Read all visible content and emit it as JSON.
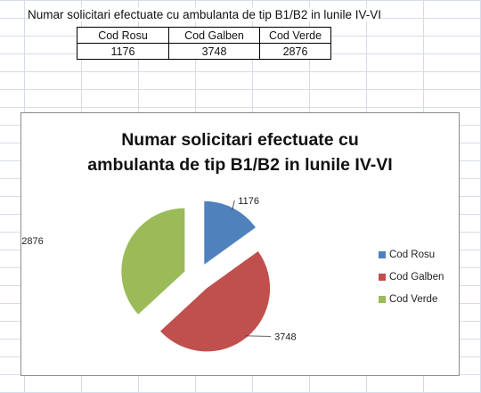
{
  "sheet": {
    "title": "Numar solicitari efectuate cu ambulanta de tip B1/B2 in lunile IV-VI",
    "table": {
      "headers": [
        "Cod Rosu",
        "Cod Galben",
        "Cod Verde"
      ],
      "values": [
        "1176",
        "3748",
        "2876"
      ]
    }
  },
  "chart_data": {
    "type": "pie",
    "title_lines": [
      "Numar solicitari efectuate cu",
      "ambulanta de tip B1/B2 in lunile IV-VI"
    ],
    "categories": [
      "Cod Rosu",
      "Cod Galben",
      "Cod Verde"
    ],
    "values": [
      1176,
      3748,
      2876
    ],
    "data_labels": [
      "1176",
      "3748",
      "2876"
    ],
    "colors": [
      "#4f81bd",
      "#c0504d",
      "#9bbb59"
    ],
    "exploded": true,
    "legend_position": "right"
  }
}
